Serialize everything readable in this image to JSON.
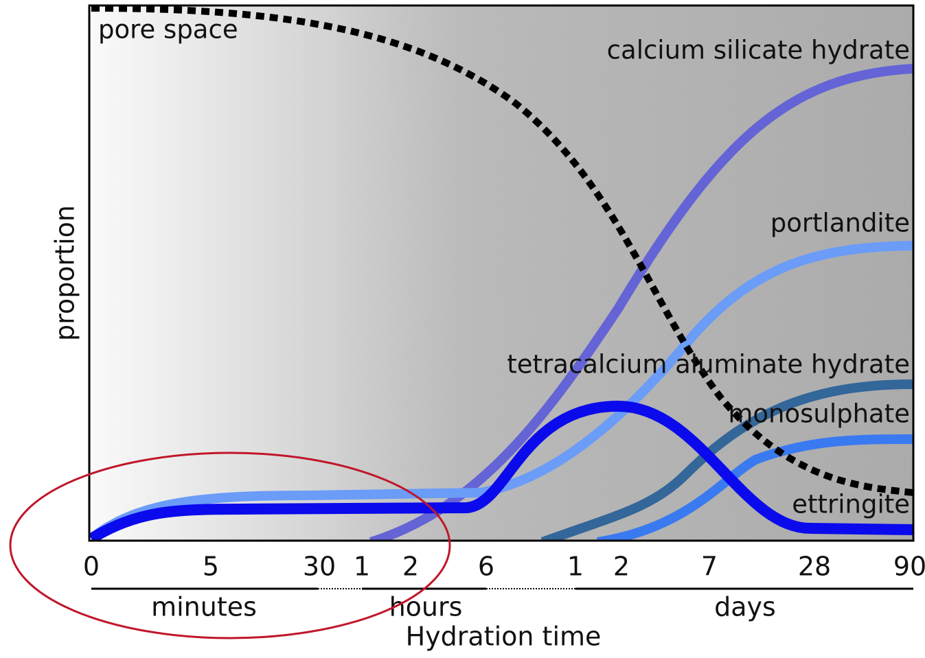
{
  "y_axis_label": "proportion",
  "x_axis_label": "Hydration time",
  "x_ticks": [
    "0",
    "5",
    "30",
    "1",
    "2",
    "6",
    "1",
    "2",
    "7",
    "28",
    "90"
  ],
  "x_units": [
    "minutes",
    "hours",
    "days"
  ],
  "curves": [
    {
      "label": "pore space"
    },
    {
      "label": "calcium silicate hydrate"
    },
    {
      "label": "portlandite"
    },
    {
      "label": "tetracalcium aluminate hydrate"
    },
    {
      "label": "monosulphate"
    },
    {
      "label": "ettringite"
    }
  ]
}
